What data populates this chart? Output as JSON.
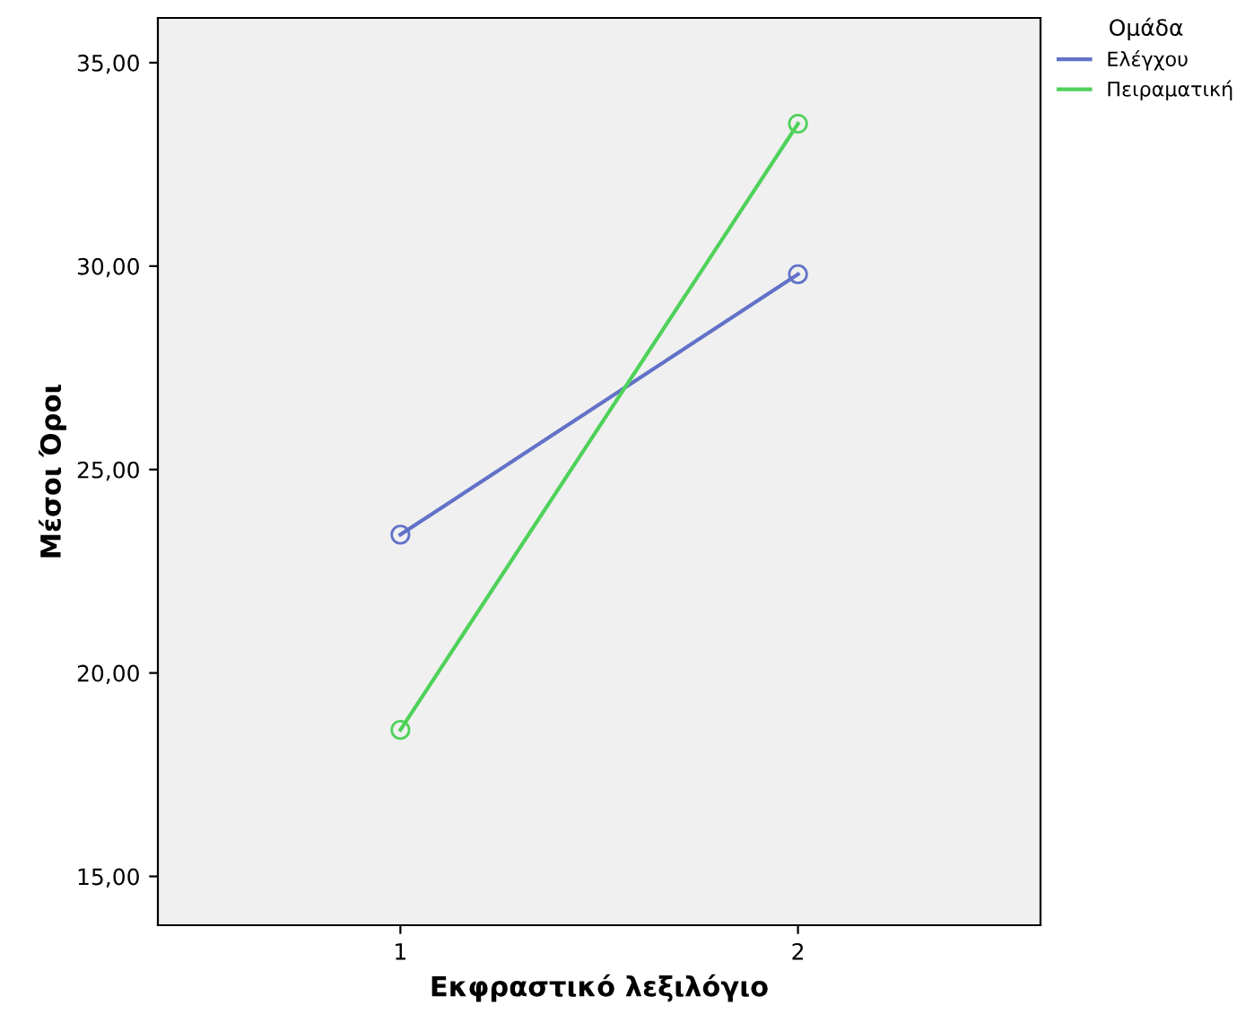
{
  "chart_data": {
    "type": "line",
    "xlabel": "Εκφραστικό λεξιλόγιο",
    "ylabel": "Μέσοι Όροι",
    "legend_title": "Ομάδα",
    "categories": [
      "1",
      "2"
    ],
    "series": [
      {
        "name": "Ελέγχου",
        "color": "#6272c8",
        "values": [
          23.4,
          29.8
        ]
      },
      {
        "name": "Πειραματική",
        "color": "#4fd15a",
        "values": [
          18.6,
          33.5
        ]
      }
    ],
    "ylim": [
      13.8,
      36.1
    ],
    "yticks": [
      {
        "value": 15,
        "label": "15,00"
      },
      {
        "value": 20,
        "label": "20,00"
      },
      {
        "value": 25,
        "label": "25,00"
      },
      {
        "value": 30,
        "label": "30,00"
      },
      {
        "value": 35,
        "label": "35,00"
      }
    ],
    "grid": false,
    "legend": "top right",
    "marker": "circle",
    "line_style": "solid"
  }
}
